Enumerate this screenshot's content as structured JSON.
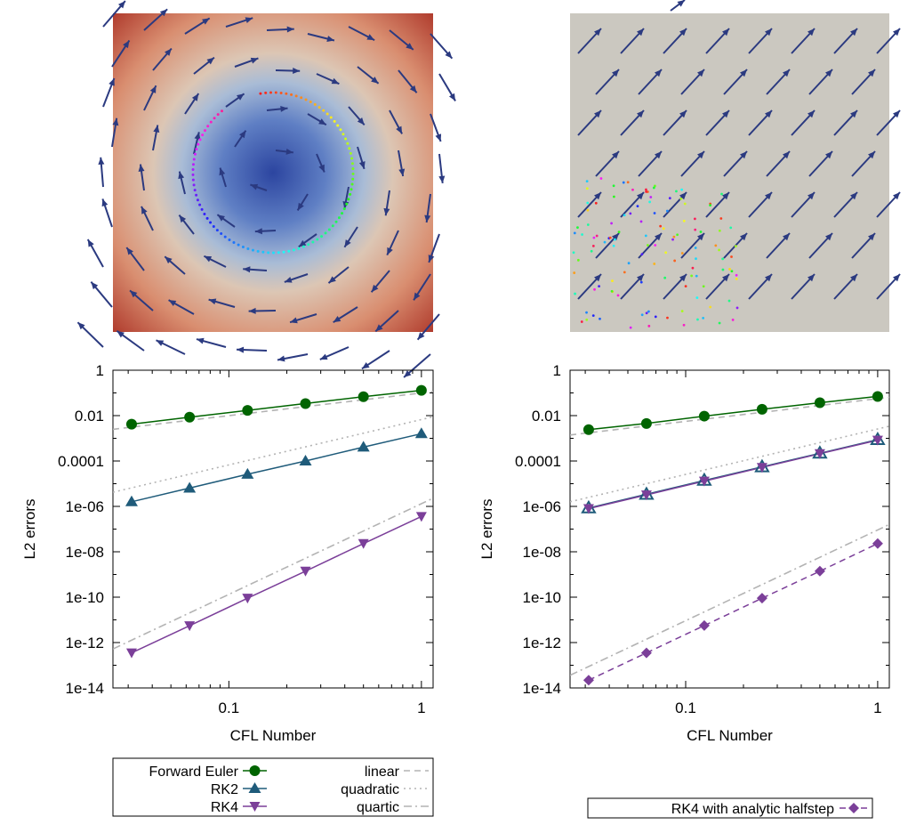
{
  "colors": {
    "forward_euler": "#006400",
    "rk2": "#1f5b7a",
    "rk4": "#7b3f99",
    "rk4_analytic": "#7b3f99",
    "reference": "#b3b3b3",
    "arrow": "#2b3a80",
    "vortex_center": "#3b54a8",
    "vortex_edge": "#b2402e",
    "uniform_bg": "#cbc8c0"
  },
  "images": [
    {
      "name": "vortex-field",
      "description_icon": "rotating-velocity-field-icon"
    },
    {
      "name": "uniform-flow-field",
      "description_icon": "uniform-velocity-field-icon"
    }
  ],
  "chart_data": [
    {
      "type": "line",
      "xscale": "log",
      "yscale": "log",
      "xlabel": "CFL Number",
      "ylabel": "L2 errors",
      "xlim": [
        0.025,
        1.15
      ],
      "ylim": [
        1e-14,
        1
      ],
      "xticks": [
        {
          "v": 0.1,
          "label": "0.1"
        },
        {
          "v": 1,
          "label": "1"
        }
      ],
      "yticks": [
        {
          "v": 1,
          "label": "1"
        },
        {
          "v": 0.01,
          "label": "0.01"
        },
        {
          "v": 0.0001,
          "label": "0.0001"
        },
        {
          "v": 1e-06,
          "label": "1e-06"
        },
        {
          "v": 1e-08,
          "label": "1e-08"
        },
        {
          "v": 1e-10,
          "label": "1e-10"
        },
        {
          "v": 1e-12,
          "label": "1e-12"
        },
        {
          "v": 1e-14,
          "label": "1e-14"
        }
      ],
      "series": [
        {
          "name": "Forward Euler",
          "marker": "circle",
          "style": "solid",
          "color": "#006400",
          "x": [
            0.03125,
            0.0625,
            0.125,
            0.25,
            0.5,
            1
          ],
          "y": [
            0.0042,
            0.0085,
            0.017,
            0.034,
            0.068,
            0.13
          ]
        },
        {
          "name": "RK2",
          "marker": "triangle-up",
          "style": "solid",
          "color": "#1f5b7a",
          "x": [
            0.03125,
            0.0625,
            0.125,
            0.25,
            0.5,
            1
          ],
          "y": [
            1.6e-06,
            6.4e-06,
            2.6e-05,
            0.0001,
            0.00041,
            0.0016
          ]
        },
        {
          "name": "RK4",
          "marker": "triangle-down",
          "style": "solid",
          "color": "#7b3f99",
          "x": [
            0.03125,
            0.0625,
            0.125,
            0.25,
            0.5,
            1
          ],
          "y": [
            3.5e-13,
            5.5e-12,
            9e-11,
            1.4e-09,
            2.3e-08,
            3.6e-07
          ]
        },
        {
          "name": "linear",
          "marker": "none",
          "style": "dashed",
          "color": "#b3b3b3",
          "x": [
            0.025,
            1.15
          ],
          "y": [
            0.0025,
            0.115
          ]
        },
        {
          "name": "quadratic",
          "marker": "none",
          "style": "dotted",
          "color": "#b3b3b3",
          "x": [
            0.025,
            1.15
          ],
          "y": [
            4.2e-06,
            0.0089
          ]
        },
        {
          "name": "quartic",
          "marker": "none",
          "style": "dashdot",
          "color": "#b3b3b3",
          "x": [
            0.025,
            1.15
          ],
          "y": [
            5.2e-13,
            2.3e-06
          ]
        }
      ],
      "legend": {
        "placement": "below",
        "entries": [
          {
            "label": "Forward Euler",
            "series": 0
          },
          {
            "label": "RK2",
            "series": 1
          },
          {
            "label": "RK4",
            "series": 2
          },
          {
            "label": "linear",
            "series": 3
          },
          {
            "label": "quadratic",
            "series": 4
          },
          {
            "label": "quartic",
            "series": 5
          }
        ]
      }
    },
    {
      "type": "line",
      "xscale": "log",
      "yscale": "log",
      "xlabel": "CFL Number",
      "ylabel": "L2 errors",
      "xlim": [
        0.025,
        1.15
      ],
      "ylim": [
        1e-14,
        1
      ],
      "xticks": [
        {
          "v": 0.1,
          "label": "0.1"
        },
        {
          "v": 1,
          "label": "1"
        }
      ],
      "yticks": [
        {
          "v": 1,
          "label": "1"
        },
        {
          "v": 0.01,
          "label": "0.01"
        },
        {
          "v": 0.0001,
          "label": "0.0001"
        },
        {
          "v": 1e-06,
          "label": "1e-06"
        },
        {
          "v": 1e-08,
          "label": "1e-08"
        },
        {
          "v": 1e-10,
          "label": "1e-10"
        },
        {
          "v": 1e-12,
          "label": "1e-12"
        },
        {
          "v": 1e-14,
          "label": "1e-14"
        }
      ],
      "series": [
        {
          "name": "Forward Euler",
          "marker": "circle",
          "style": "solid",
          "color": "#006400",
          "x": [
            0.03125,
            0.0625,
            0.125,
            0.25,
            0.5,
            1
          ],
          "y": [
            0.0024,
            0.0045,
            0.0095,
            0.019,
            0.037,
            0.07
          ]
        },
        {
          "name": "RK2",
          "marker": "triangle-up-open",
          "style": "solid",
          "color": "#1f5b7a",
          "x": [
            0.03125,
            0.0625,
            0.125,
            0.25,
            0.5,
            1
          ],
          "y": [
            8.5e-07,
            3.4e-06,
            1.4e-05,
            5.5e-05,
            0.00022,
            0.00087
          ]
        },
        {
          "name": "RK4",
          "marker": "triangle-down",
          "style": "solid",
          "color": "#7b3f99",
          "x": [
            0.03125,
            0.0625,
            0.125,
            0.25,
            0.5,
            1
          ],
          "y": [
            8e-07,
            3.2e-06,
            1.3e-05,
            5.2e-05,
            0.00021,
            0.00083
          ]
        },
        {
          "name": "RK4 with analytic halfstep",
          "marker": "diamond",
          "style": "dashed",
          "color": "#7b3f99",
          "x": [
            0.03125,
            0.0625,
            0.125,
            0.25,
            0.5,
            1
          ],
          "y": [
            2.2e-14,
            3.5e-13,
            5.6e-12,
            9e-11,
            1.4e-09,
            2.3e-08
          ]
        },
        {
          "name": "linear",
          "marker": "none",
          "style": "dashed",
          "color": "#b3b3b3",
          "x": [
            0.025,
            1.15
          ],
          "y": [
            0.0014,
            0.064
          ]
        },
        {
          "name": "quadratic",
          "marker": "none",
          "style": "dotted",
          "color": "#b3b3b3",
          "x": [
            0.025,
            1.15
          ],
          "y": [
            1.6e-06,
            0.0034
          ]
        },
        {
          "name": "quartic",
          "marker": "none",
          "style": "dashdot",
          "color": "#b3b3b3",
          "x": [
            0.025,
            1.15
          ],
          "y": [
            3.6e-14,
            1.6e-07
          ]
        }
      ],
      "legend": {
        "placement": "below",
        "entries": [
          {
            "label": "RK4 with analytic halfstep",
            "series": 3
          }
        ]
      }
    }
  ]
}
